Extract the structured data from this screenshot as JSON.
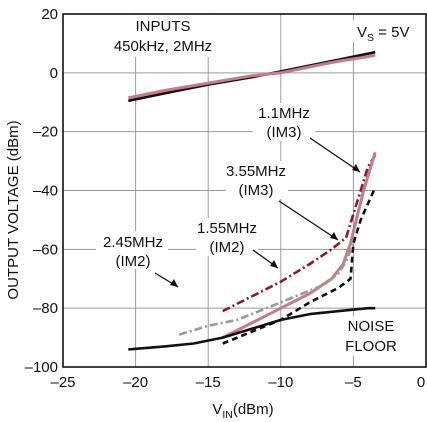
{
  "chart_data": {
    "type": "line",
    "xlabel": "V",
    "xlabel_sub": "IN",
    "xlabel_unit": "(dBm)",
    "ylabel": "OUTPUT VOLTAGE (dBm)",
    "xlim": [
      -25,
      0
    ],
    "ylim": [
      -100,
      20
    ],
    "grid": true,
    "x_ticks": [
      -25,
      -20,
      -15,
      -10,
      -5,
      0
    ],
    "x_tick_labels": [
      "–25",
      "–20",
      "–15",
      "–10",
      "–5",
      "0"
    ],
    "y_ticks": [
      -100,
      -80,
      -60,
      -40,
      -20,
      0,
      20
    ],
    "y_tick_labels": [
      "–100",
      "–80",
      "–60",
      "–40",
      "–20",
      "0",
      "20"
    ],
    "series": [
      {
        "name": "450kHz, 2MHz (black)",
        "color": "#111111",
        "dash": "solid",
        "x": [
          -20.5,
          -18,
          -15,
          -12,
          -10,
          -8,
          -6,
          -4,
          -3.5
        ],
        "y": [
          -9.5,
          -7,
          -4,
          -1.5,
          0.5,
          2.5,
          4.5,
          6.5,
          7
        ]
      },
      {
        "name": "450kHz, 2MHz (pink)",
        "color": "#c77b86",
        "dash": "solid",
        "x": [
          -20.5,
          -18,
          -15,
          -12,
          -10,
          -8,
          -6,
          -4,
          -3.5
        ],
        "y": [
          -8.5,
          -6,
          -3.5,
          -1,
          0,
          2,
          4,
          5.5,
          6
        ]
      },
      {
        "name": "1.1MHz (IM3)",
        "color": "#8b1a2b",
        "dash": "dashdot",
        "x": [
          -14,
          -12,
          -10,
          -8,
          -6.5,
          -5.5,
          -5,
          -4.5,
          -4,
          -3.5
        ],
        "y": [
          -81,
          -76,
          -71,
          -65,
          -60,
          -56,
          -48,
          -40,
          -32,
          -28
        ]
      },
      {
        "name": "3.55MHz (IM3)",
        "color": "#c77b86",
        "dash": "solid",
        "x": [
          -14,
          -12,
          -10,
          -8,
          -6.5,
          -5.7,
          -5.2,
          -4.8,
          -4.3,
          -3.5
        ],
        "y": [
          -90,
          -85,
          -80,
          -75,
          -70,
          -65,
          -58,
          -50,
          -40,
          -27
        ]
      },
      {
        "name": "1.55MHz (IM2)",
        "color": "#111111",
        "dash": "dash",
        "x": [
          -14,
          -12,
          -10,
          -8,
          -6,
          -5.2,
          -5,
          -4.5,
          -3.5
        ],
        "y": [
          -92,
          -88,
          -84,
          -78,
          -73,
          -70,
          -58,
          -50,
          -39
        ]
      },
      {
        "name": "2.45MHz (IM2)",
        "color": "#999999",
        "dash": "dashdot",
        "x": [
          -17,
          -15,
          -13,
          -11,
          -9,
          -7,
          -6,
          -5.5,
          -5
        ],
        "y": [
          -89,
          -86,
          -84,
          -80,
          -76,
          -72,
          -68,
          -64,
          -58
        ]
      },
      {
        "name": "NOISE FLOOR",
        "color": "#111111",
        "dash": "solid",
        "x": [
          -20.5,
          -18,
          -16,
          -14,
          -12,
          -10,
          -8,
          -6,
          -4,
          -3.5
        ],
        "y": [
          -94,
          -93,
          -92,
          -90,
          -87,
          -84,
          -82,
          -81,
          -80,
          -80
        ]
      }
    ],
    "annotations": [
      {
        "lines": [
          "INPUTS",
          "450kHz, 2MHz"
        ]
      },
      {
        "lines": [
          "V",
          "S",
          " = 5V"
        ]
      },
      {
        "lines": [
          "1.1MHz",
          "(IM3)"
        ]
      },
      {
        "lines": [
          "3.55MHz",
          "(IM3)"
        ]
      },
      {
        "lines": [
          "1.55MHz",
          "(IM2)"
        ]
      },
      {
        "lines": [
          "2.45MHz",
          "(IM2)"
        ]
      },
      {
        "lines": [
          "NOISE",
          "FLOOR"
        ]
      }
    ]
  }
}
